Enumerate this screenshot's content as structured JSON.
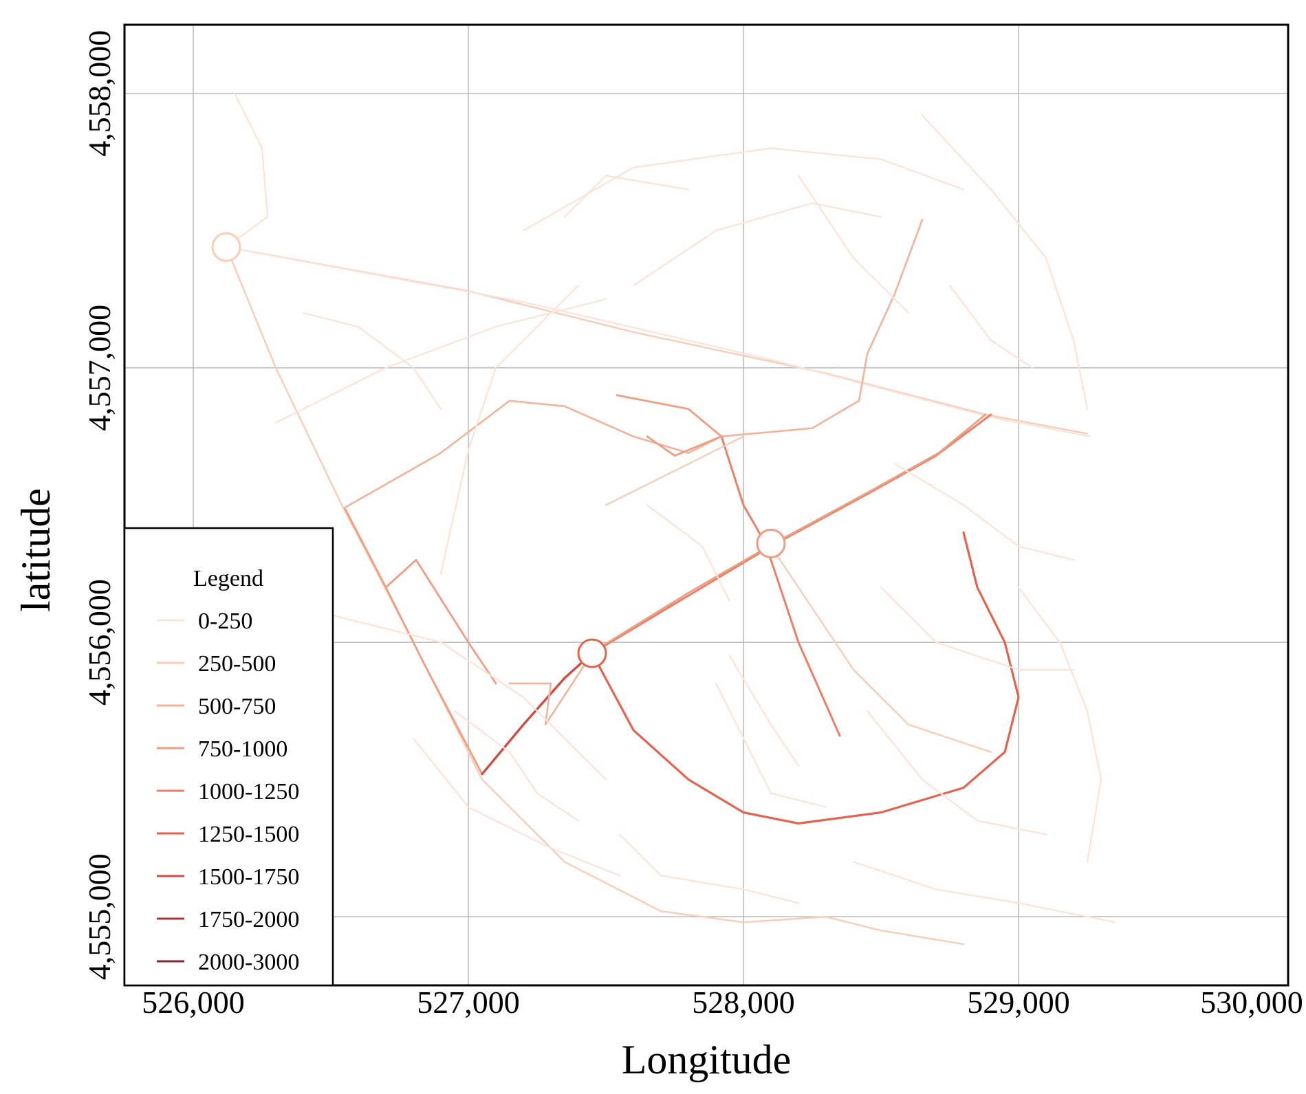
{
  "chart_data": {
    "type": "map",
    "xlabel": "Longitude",
    "ylabel": "latitude",
    "xlim": [
      525750,
      529980
    ],
    "ylim": [
      4554750,
      4558250
    ],
    "x_ticks": [
      526000,
      527000,
      528000,
      529000,
      530000
    ],
    "x_tick_labels": [
      "526,000",
      "527,000",
      "528,000",
      "529,000",
      "530,000"
    ],
    "y_ticks": [
      4555000,
      4556000,
      4557000,
      4558000
    ],
    "y_tick_labels": [
      "4,555,000",
      "4,556,000",
      "4,557,000",
      "4,558,000"
    ],
    "grid": true,
    "legend_position": "bottom-left",
    "legend": {
      "title": "Legend",
      "classes": [
        {
          "label": "0-250",
          "color": "#fbe3d9"
        },
        {
          "label": "250-500",
          "color": "#f7cdb9"
        },
        {
          "label": "500-750",
          "color": "#f2b39b"
        },
        {
          "label": "750-1000",
          "color": "#ee9e82"
        },
        {
          "label": "1000-1250",
          "color": "#ea8068"
        },
        {
          "label": "1250-1500",
          "color": "#e2644f"
        },
        {
          "label": "1500-1750",
          "color": "#d24b3f"
        },
        {
          "label": "1750-2000",
          "color": "#a9343d"
        },
        {
          "label": "2000-3000",
          "color": "#7f2633"
        }
      ]
    },
    "roads": [
      {
        "cls": 0,
        "pts": [
          [
            526150,
            4558000
          ],
          [
            526250,
            4557800
          ],
          [
            526270,
            4557550
          ],
          [
            526120,
            4557440
          ]
        ]
      },
      {
        "cls": 1,
        "pts": [
          [
            526120,
            4557440
          ],
          [
            526450,
            4557380
          ],
          [
            527000,
            4557280
          ],
          [
            527600,
            4557130
          ],
          [
            528300,
            4556980
          ],
          [
            528880,
            4556830
          ],
          [
            529250,
            4556760
          ]
        ]
      },
      {
        "cls": 0,
        "pts": [
          [
            526120,
            4557440
          ],
          [
            526550,
            4557360
          ],
          [
            527200,
            4557240
          ],
          [
            528100,
            4557030
          ],
          [
            528900,
            4556820
          ],
          [
            529260,
            4556750
          ]
        ]
      },
      {
        "cls": 1,
        "pts": [
          [
            526120,
            4557440
          ],
          [
            526300,
            4557000
          ],
          [
            526540,
            4556500
          ],
          [
            526800,
            4556000
          ],
          [
            527050,
            4555500
          ],
          [
            527350,
            4555200
          ],
          [
            527700,
            4555020
          ],
          [
            528000,
            4554980
          ],
          [
            528300,
            4555000
          ],
          [
            528500,
            4554950
          ],
          [
            528800,
            4554900
          ]
        ]
      },
      {
        "cls": 3,
        "pts": [
          [
            526550,
            4556490
          ],
          [
            526700,
            4556200
          ],
          [
            526840,
            4555920
          ],
          [
            527050,
            4555520
          ]
        ]
      },
      {
        "cls": 2,
        "pts": [
          [
            526550,
            4556490
          ],
          [
            526900,
            4556690
          ],
          [
            527150,
            4556880
          ],
          [
            527350,
            4556860
          ],
          [
            527600,
            4556750
          ],
          [
            527800,
            4556690
          ],
          [
            527920,
            4556750
          ]
        ]
      },
      {
        "cls": 2,
        "pts": [
          [
            527920,
            4556750
          ],
          [
            528250,
            4556780
          ],
          [
            528420,
            4556880
          ],
          [
            528450,
            4557050
          ],
          [
            528550,
            4557270
          ],
          [
            528650,
            4557540
          ]
        ]
      },
      {
        "cls": 4,
        "pts": [
          [
            527450,
            4555960
          ],
          [
            527800,
            4556170
          ],
          [
            528100,
            4556350
          ],
          [
            528450,
            4556540
          ],
          [
            528700,
            4556680
          ],
          [
            528900,
            4556830
          ]
        ]
      },
      {
        "cls": 3,
        "pts": [
          [
            527460,
            4555970
          ],
          [
            527800,
            4556180
          ],
          [
            528110,
            4556360
          ],
          [
            528460,
            4556550
          ],
          [
            528710,
            4556690
          ],
          [
            528880,
            4556830
          ]
        ]
      },
      {
        "cls": 6,
        "pts": [
          [
            527450,
            4555960
          ],
          [
            527350,
            4555870
          ],
          [
            527200,
            4555700
          ],
          [
            527050,
            4555520
          ]
        ]
      },
      {
        "cls": 5,
        "pts": [
          [
            527450,
            4555960
          ],
          [
            527600,
            4555680
          ],
          [
            527800,
            4555500
          ],
          [
            528000,
            4555380
          ],
          [
            528200,
            4555340
          ],
          [
            528500,
            4555380
          ],
          [
            528800,
            4555470
          ],
          [
            528950,
            4555600
          ],
          [
            529000,
            4555800
          ],
          [
            528950,
            4556000
          ],
          [
            528850,
            4556200
          ],
          [
            528800,
            4556400
          ]
        ]
      },
      {
        "cls": 4,
        "pts": [
          [
            527920,
            4556750
          ],
          [
            528000,
            4556500
          ],
          [
            528080,
            4556360
          ],
          [
            528200,
            4556000
          ],
          [
            528350,
            4555660
          ]
        ]
      },
      {
        "cls": 3,
        "pts": [
          [
            527540,
            4556900
          ],
          [
            527800,
            4556850
          ],
          [
            527920,
            4556750
          ],
          [
            527750,
            4556680
          ],
          [
            527650,
            4556750
          ]
        ]
      },
      {
        "cls": 3,
        "pts": [
          [
            526700,
            4556200
          ],
          [
            526810,
            4556300
          ],
          [
            527000,
            4556000
          ],
          [
            527100,
            4555850
          ]
        ]
      },
      {
        "cls": 2,
        "pts": [
          [
            527150,
            4555850
          ],
          [
            527300,
            4555850
          ],
          [
            527280,
            4555700
          ],
          [
            527450,
            4555960
          ]
        ]
      },
      {
        "cls": 1,
        "pts": [
          [
            527500,
            4556500
          ],
          [
            527900,
            4556700
          ],
          [
            528000,
            4556750
          ]
        ]
      },
      {
        "cls": 1,
        "pts": [
          [
            528100,
            4556350
          ],
          [
            528400,
            4555900
          ],
          [
            528600,
            4555700
          ],
          [
            528900,
            4555600
          ]
        ]
      },
      {
        "cls": 0,
        "pts": [
          [
            526900,
            4556250
          ],
          [
            527000,
            4556700
          ],
          [
            527100,
            4557000
          ],
          [
            527400,
            4557300
          ]
        ]
      },
      {
        "cls": 0,
        "pts": [
          [
            527200,
            4557500
          ],
          [
            527600,
            4557730
          ],
          [
            528100,
            4557800
          ],
          [
            528500,
            4557760
          ],
          [
            528800,
            4557650
          ]
        ]
      },
      {
        "cls": 0,
        "pts": [
          [
            528650,
            4557920
          ],
          [
            528900,
            4557650
          ],
          [
            529100,
            4557400
          ],
          [
            529200,
            4557100
          ],
          [
            529250,
            4556850
          ]
        ]
      },
      {
        "cls": 0,
        "pts": [
          [
            527600,
            4557300
          ],
          [
            527900,
            4557500
          ],
          [
            528250,
            4557600
          ],
          [
            528500,
            4557550
          ]
        ]
      },
      {
        "cls": 0,
        "pts": [
          [
            526300,
            4556800
          ],
          [
            526700,
            4557000
          ],
          [
            527100,
            4557150
          ],
          [
            527500,
            4557250
          ]
        ]
      },
      {
        "cls": 0,
        "pts": [
          [
            526500,
            4556100
          ],
          [
            526900,
            4556000
          ],
          [
            527200,
            4555800
          ],
          [
            527500,
            4555500
          ]
        ]
      },
      {
        "cls": 0,
        "pts": [
          [
            527900,
            4555850
          ],
          [
            528000,
            4555650
          ],
          [
            528100,
            4555450
          ],
          [
            528300,
            4555400
          ]
        ]
      },
      {
        "cls": 0,
        "pts": [
          [
            528500,
            4556200
          ],
          [
            528700,
            4556000
          ],
          [
            529000,
            4555900
          ],
          [
            529200,
            4555900
          ]
        ]
      },
      {
        "cls": 0,
        "pts": [
          [
            528400,
            4555200
          ],
          [
            528700,
            4555100
          ],
          [
            529000,
            4555050
          ],
          [
            529350,
            4554980
          ]
        ]
      },
      {
        "cls": 0,
        "pts": [
          [
            529000,
            4556200
          ],
          [
            529150,
            4556000
          ],
          [
            529250,
            4555750
          ],
          [
            529300,
            4555500
          ],
          [
            529250,
            4555200
          ]
        ]
      },
      {
        "cls": 0,
        "pts": [
          [
            527550,
            4555300
          ],
          [
            527700,
            4555150
          ],
          [
            528000,
            4555100
          ],
          [
            528200,
            4555050
          ]
        ]
      },
      {
        "cls": 0,
        "pts": [
          [
            526800,
            4555650
          ],
          [
            527000,
            4555400
          ],
          [
            527300,
            4555250
          ],
          [
            527550,
            4555150
          ]
        ]
      },
      {
        "cls": 0,
        "pts": [
          [
            527950,
            4555950
          ],
          [
            528100,
            4555700
          ],
          [
            528200,
            4555550
          ]
        ]
      },
      {
        "cls": 0,
        "pts": [
          [
            527650,
            4556500
          ],
          [
            527850,
            4556350
          ],
          [
            527950,
            4556150
          ]
        ]
      },
      {
        "cls": 0,
        "pts": [
          [
            528550,
            4556650
          ],
          [
            528800,
            4556500
          ],
          [
            529000,
            4556350
          ],
          [
            529200,
            4556300
          ]
        ]
      },
      {
        "cls": 0,
        "pts": [
          [
            526400,
            4557200
          ],
          [
            526600,
            4557150
          ],
          [
            526800,
            4557000
          ],
          [
            526900,
            4556850
          ]
        ]
      },
      {
        "cls": 0,
        "pts": [
          [
            527350,
            4557550
          ],
          [
            527500,
            4557700
          ],
          [
            527800,
            4557650
          ]
        ]
      },
      {
        "cls": 0,
        "pts": [
          [
            528200,
            4557700
          ],
          [
            528300,
            4557550
          ],
          [
            528400,
            4557400
          ],
          [
            528600,
            4557200
          ]
        ]
      },
      {
        "cls": 0,
        "pts": [
          [
            528750,
            4557300
          ],
          [
            528900,
            4557100
          ],
          [
            529050,
            4557000
          ]
        ]
      },
      {
        "cls": 0,
        "pts": [
          [
            526950,
            4555750
          ],
          [
            527150,
            4555600
          ],
          [
            527250,
            4555450
          ],
          [
            527400,
            4555350
          ]
        ]
      },
      {
        "cls": 0,
        "pts": [
          [
            528450,
            4555750
          ],
          [
            528650,
            4555500
          ],
          [
            528850,
            4555350
          ],
          [
            529100,
            4555300
          ]
        ]
      }
    ],
    "nodes": [
      {
        "x": 526120,
        "y": 4557440,
        "cls": 1
      },
      {
        "x": 527450,
        "y": 4555960,
        "cls": 5
      },
      {
        "x": 528100,
        "y": 4556360,
        "cls": 3
      }
    ]
  }
}
